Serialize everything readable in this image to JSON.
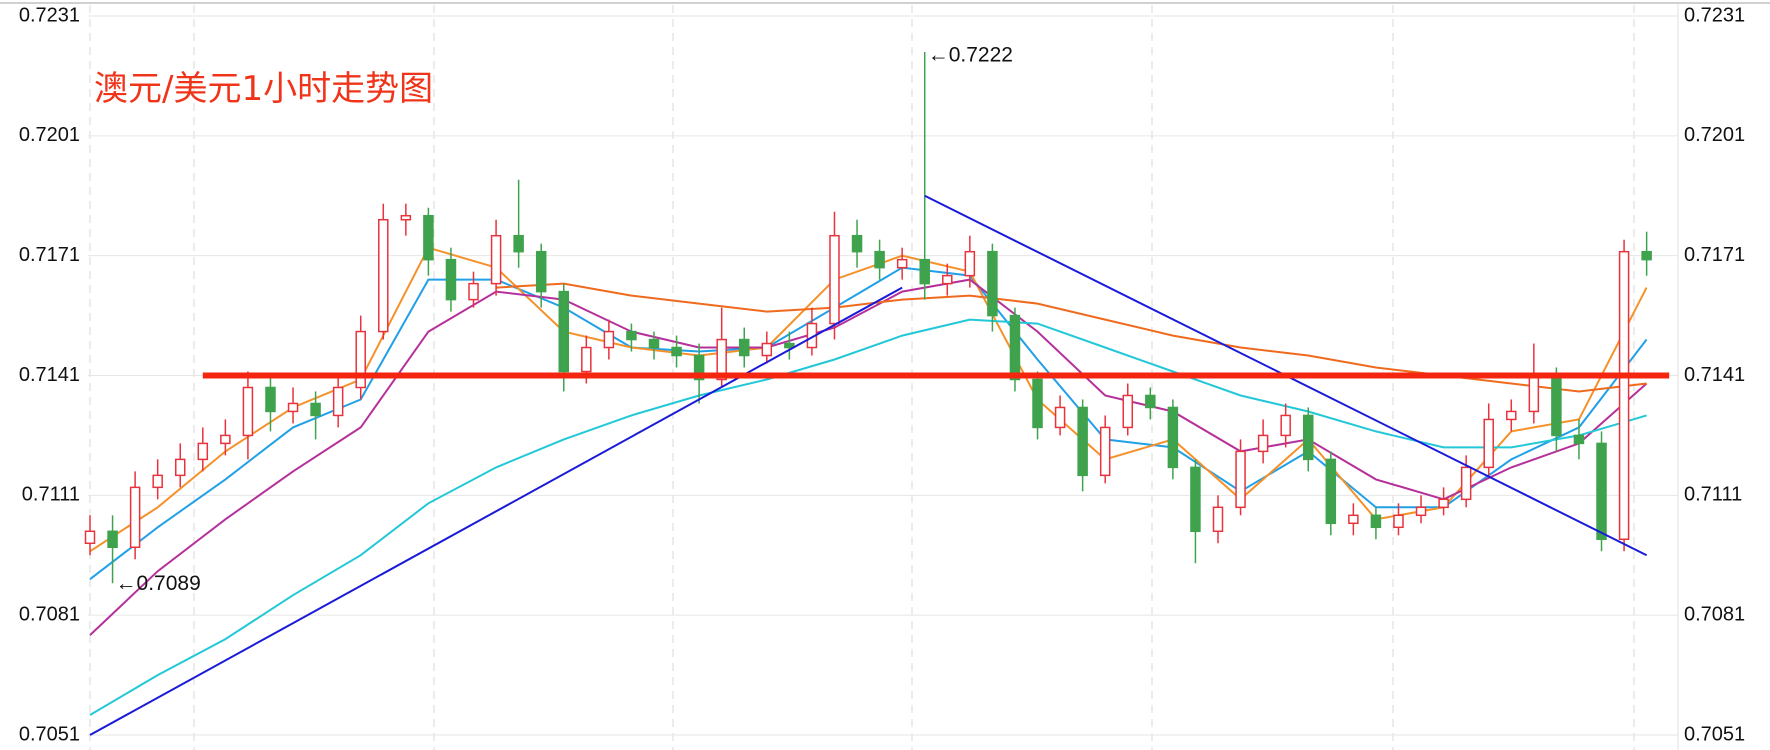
{
  "chart_data": {
    "type": "candlestick",
    "title": "澳元/美元1小时走势图",
    "ylim": [
      0.7051,
      0.7231
    ],
    "yticks": [
      0.7051,
      0.7081,
      0.7111,
      0.7141,
      0.7171,
      0.7201,
      0.7231
    ],
    "grid": true,
    "up_color": "#e8323c",
    "down_color": "#3fa34d",
    "candles": {
      "open": [
        0.7099,
        0.7102,
        0.7098,
        0.7113,
        0.7116,
        0.712,
        0.7124,
        0.7126,
        0.7138,
        0.7132,
        0.7134,
        0.7131,
        0.7138,
        0.7152,
        0.718,
        0.7181,
        0.717,
        0.716,
        0.7164,
        0.7176,
        0.7172,
        0.7162,
        0.7142,
        0.7148,
        0.7152,
        0.715,
        0.7148,
        0.7146,
        0.714,
        0.715,
        0.7146,
        0.7149,
        0.7148,
        0.7154,
        0.7176,
        0.7172,
        0.7168,
        0.717,
        0.7164,
        0.7166,
        0.7172,
        0.7156,
        0.714,
        0.7128,
        0.7133,
        0.7116,
        0.7128,
        0.7136,
        0.7133,
        0.7118,
        0.7102,
        0.7108,
        0.7122,
        0.7126,
        0.7131,
        0.712,
        0.7104,
        0.7106,
        0.7103,
        0.7106,
        0.7108,
        0.711,
        0.7118,
        0.713,
        0.7132,
        0.7141,
        0.7126,
        0.7124,
        0.71,
        0.7172
      ],
      "high": [
        0.7106,
        0.7106,
        0.7117,
        0.712,
        0.7124,
        0.7128,
        0.713,
        0.7142,
        0.7141,
        0.7138,
        0.7137,
        0.7141,
        0.7156,
        0.7184,
        0.7184,
        0.7183,
        0.7173,
        0.7167,
        0.718,
        0.719,
        0.7174,
        0.7164,
        0.7151,
        0.7155,
        0.7154,
        0.7152,
        0.7151,
        0.7149,
        0.7158,
        0.7153,
        0.7152,
        0.7152,
        0.7158,
        0.7182,
        0.718,
        0.7175,
        0.7173,
        0.7222,
        0.7169,
        0.7176,
        0.7174,
        0.7158,
        0.7142,
        0.7136,
        0.7135,
        0.7131,
        0.7139,
        0.7138,
        0.7135,
        0.712,
        0.7111,
        0.7125,
        0.713,
        0.7134,
        0.7133,
        0.7122,
        0.7109,
        0.7108,
        0.7109,
        0.7111,
        0.7113,
        0.7121,
        0.7134,
        0.7135,
        0.7149,
        0.7143,
        0.713,
        0.7127,
        0.7175,
        0.7177
      ],
      "low": [
        0.7096,
        0.7089,
        0.7095,
        0.711,
        0.7113,
        0.7117,
        0.7121,
        0.712,
        0.7127,
        0.7129,
        0.7125,
        0.7128,
        0.7135,
        0.715,
        0.7176,
        0.7166,
        0.7157,
        0.7158,
        0.7161,
        0.7168,
        0.7158,
        0.7137,
        0.7139,
        0.7145,
        0.7147,
        0.7145,
        0.7143,
        0.7134,
        0.7138,
        0.7143,
        0.7144,
        0.7145,
        0.7146,
        0.715,
        0.7168,
        0.7165,
        0.7165,
        0.716,
        0.7161,
        0.7163,
        0.7152,
        0.7137,
        0.7125,
        0.7126,
        0.7112,
        0.7114,
        0.7126,
        0.713,
        0.7115,
        0.7094,
        0.7099,
        0.7106,
        0.7119,
        0.7123,
        0.7117,
        0.7101,
        0.7101,
        0.71,
        0.7101,
        0.7104,
        0.7106,
        0.7108,
        0.7116,
        0.7127,
        0.7129,
        0.7122,
        0.712,
        0.7097,
        0.7097,
        0.7166
      ],
      "close": [
        0.7102,
        0.7098,
        0.7113,
        0.7116,
        0.712,
        0.7124,
        0.7126,
        0.7138,
        0.7132,
        0.7134,
        0.7131,
        0.7138,
        0.7152,
        0.718,
        0.7181,
        0.717,
        0.716,
        0.7164,
        0.7176,
        0.7172,
        0.7162,
        0.7142,
        0.7148,
        0.7152,
        0.715,
        0.7148,
        0.7146,
        0.714,
        0.715,
        0.7146,
        0.7149,
        0.7148,
        0.7154,
        0.7176,
        0.7172,
        0.7168,
        0.717,
        0.7164,
        0.7166,
        0.7172,
        0.7156,
        0.714,
        0.7128,
        0.7133,
        0.7116,
        0.7128,
        0.7136,
        0.7133,
        0.7118,
        0.7102,
        0.7108,
        0.7122,
        0.7126,
        0.7131,
        0.712,
        0.7104,
        0.7106,
        0.7103,
        0.7106,
        0.7108,
        0.711,
        0.7118,
        0.713,
        0.7132,
        0.7141,
        0.7126,
        0.7124,
        0.71,
        0.7172,
        0.717
      ]
    },
    "series": [
      {
        "color": "#21a0e8",
        "x": [
          0,
          3,
          6,
          9,
          12,
          15,
          18,
          21,
          24,
          27,
          30,
          33,
          36,
          39,
          42,
          45,
          48,
          51,
          54,
          57,
          60,
          63,
          66,
          69
        ],
        "values": [
          0.709,
          0.7103,
          0.7115,
          0.7128,
          0.7135,
          0.7165,
          0.7165,
          0.7158,
          0.7148,
          0.7147,
          0.7148,
          0.7158,
          0.7168,
          0.7166,
          0.7145,
          0.7125,
          0.7123,
          0.7112,
          0.7122,
          0.7108,
          0.7108,
          0.712,
          0.7128,
          0.715
        ]
      },
      {
        "color": "#f5912a",
        "x": [
          0,
          3,
          6,
          9,
          12,
          15,
          18,
          21,
          24,
          27,
          30,
          33,
          36,
          39,
          42,
          45,
          48,
          51,
          54,
          57,
          60,
          63,
          66,
          69
        ],
        "values": [
          0.7097,
          0.7108,
          0.7122,
          0.7133,
          0.714,
          0.7173,
          0.7168,
          0.7152,
          0.7148,
          0.7146,
          0.7148,
          0.7165,
          0.7171,
          0.7167,
          0.7135,
          0.712,
          0.7125,
          0.711,
          0.7125,
          0.7105,
          0.7108,
          0.7127,
          0.713,
          0.7163
        ]
      },
      {
        "color": "#b5309a",
        "x": [
          0,
          3,
          6,
          9,
          12,
          15,
          18,
          21,
          24,
          27,
          30,
          33,
          36,
          39,
          42,
          45,
          48,
          51,
          54,
          57,
          60,
          63,
          66,
          69
        ],
        "values": [
          0.7076,
          0.7092,
          0.7105,
          0.7117,
          0.7128,
          0.7152,
          0.7162,
          0.716,
          0.7152,
          0.7148,
          0.7148,
          0.7153,
          0.7162,
          0.7165,
          0.7152,
          0.7136,
          0.7132,
          0.7122,
          0.7125,
          0.7115,
          0.711,
          0.7118,
          0.7124,
          0.7139
        ]
      },
      {
        "color": "#22c8d8",
        "x": [
          0,
          3,
          6,
          9,
          12,
          15,
          18,
          21,
          24,
          27,
          30,
          33,
          36,
          39,
          42,
          45,
          48,
          51,
          54,
          57,
          60,
          63,
          66,
          69
        ],
        "values": [
          0.7056,
          0.7066,
          0.7075,
          0.7086,
          0.7096,
          0.7109,
          0.7118,
          0.7125,
          0.7131,
          0.7136,
          0.714,
          0.7145,
          0.7151,
          0.7155,
          0.7154,
          0.7148,
          0.7142,
          0.7136,
          0.7132,
          0.7127,
          0.7123,
          0.7123,
          0.7126,
          0.7131
        ]
      },
      {
        "color": "#f06a1e",
        "x": [
          0,
          3,
          6,
          9,
          12,
          15,
          18,
          21,
          24,
          27,
          30,
          33,
          36,
          39,
          42,
          45,
          48,
          51,
          54,
          57,
          60,
          63,
          66,
          69
        ],
        "values": [
          null,
          null,
          null,
          null,
          null,
          null,
          0.7163,
          0.7164,
          0.7161,
          0.7159,
          0.7157,
          0.7158,
          0.716,
          0.7161,
          0.7159,
          0.7155,
          0.7151,
          0.7148,
          0.7146,
          0.7143,
          0.7141,
          0.7139,
          0.7137,
          0.7139
        ]
      }
    ],
    "lines": [
      {
        "color": "#1a1ad8",
        "points": [
          [
            0,
            0.7051
          ],
          [
            36,
            0.7163
          ]
        ]
      },
      {
        "color": "#1a1ad8",
        "points": [
          [
            37,
            0.7186
          ],
          [
            69,
            0.7096
          ]
        ]
      },
      {
        "color": "#f5260f",
        "points": [
          [
            5,
            0.7141
          ],
          [
            70,
            0.7141
          ]
        ]
      }
    ],
    "annotations": [
      {
        "text": "←0.7222",
        "x": 37,
        "y": 0.7222
      },
      {
        "text": "←0.7089",
        "x": 1,
        "y": 0.7089
      }
    ]
  }
}
